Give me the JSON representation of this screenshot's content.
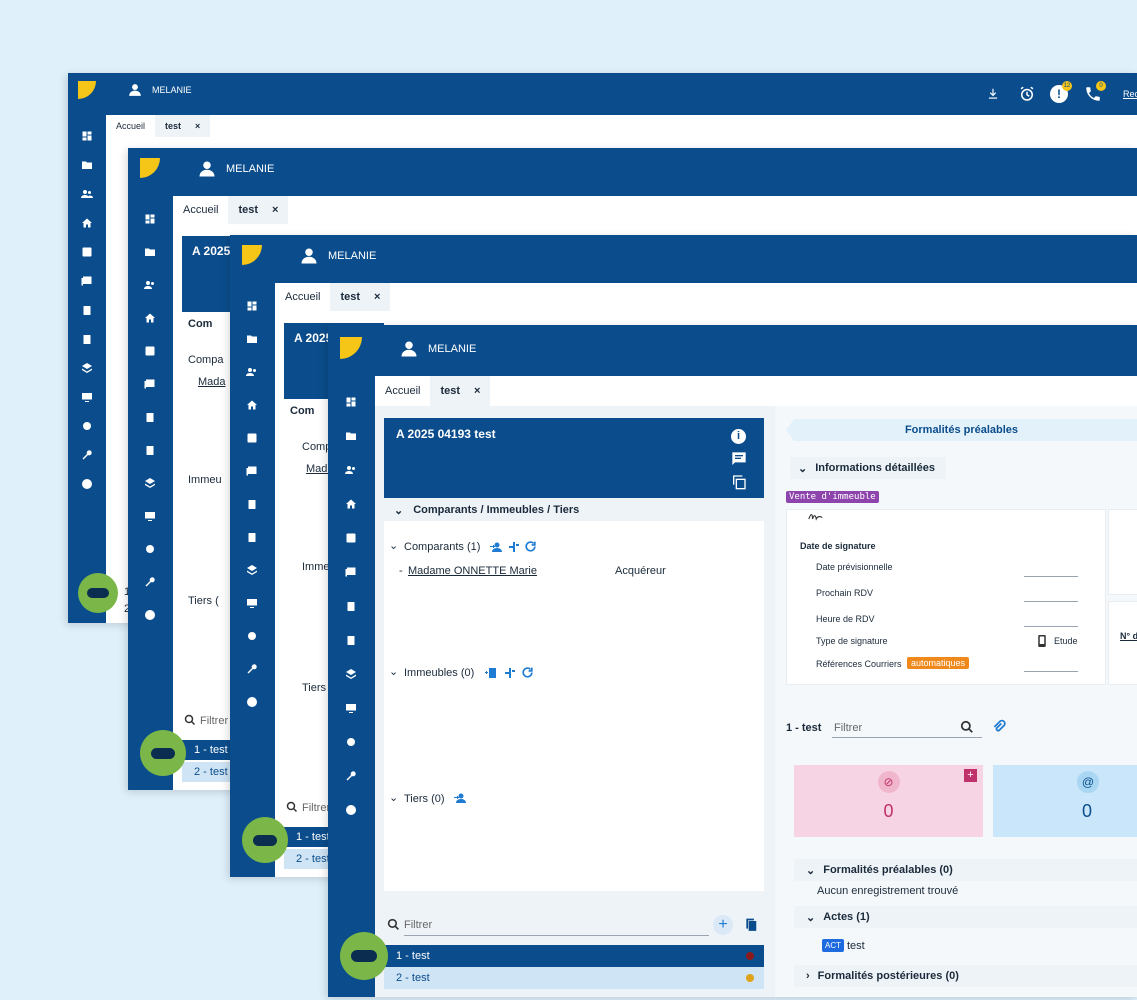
{
  "app": {
    "user_name": "MELANIE",
    "tab_home": "Accueil",
    "tab_active": "test",
    "tab_close": "×",
    "search_cut": "Rec",
    "alert_count": "12",
    "call_count": "0"
  },
  "dossier": {
    "title": "A 2025 04193 test",
    "title_cut1": "A 2025",
    "title_cut2": "A 2025",
    "section_label": "Comparants / Immeubles / Tiers",
    "section_cut": "Com",
    "comparants_label": "Comparants (1)",
    "comparants_cut": "Compa",
    "comparants_cut2": "Comp",
    "comparant_name": "Madame ONNETTE Marie",
    "comparant_name_cut": "Mada",
    "comparant_name_cut2": "Madi",
    "comparant_role": "Acquéreur",
    "immeubles_label": "Immeubles (0)",
    "immeubles_cut": "Immeu",
    "immeubles_cut2": "Imme",
    "tiers_label": "Tiers (0)",
    "tiers_cut": "Tiers (",
    "tiers_cut2": "Tiers"
  },
  "list": {
    "filter_placeholder": "Filtrer",
    "row1": "1 - test",
    "row2": "2 - test",
    "row1_cut": "1 - test",
    "row2_cut": "2 - test",
    "row1_cut_back": "1",
    "row2_cut_back": "2"
  },
  "right": {
    "banner": "Formalités préalables",
    "info_title": "Informations détaillées",
    "type_badge": "Vente d'immeuble",
    "date_signature": "Date de signature",
    "date_prev": "Date prévisionnelle",
    "prochain_rdv": "Prochain RDV",
    "heure_rdv": "Heure de RDV",
    "type_signature": "Type de signature",
    "type_signature_value": "Etude",
    "refs_courriers": "Références Courriers",
    "refs_badge": "automatiques",
    "side_cut": "N° d",
    "doc_label": "1 - test",
    "doc_filter": "Filtrer",
    "counter_attach": "0",
    "counter_mail": "0",
    "formalites_prealables": "Formalités préalables (0)",
    "aucun": "Aucun enregistrement trouvé",
    "actes": "Actes (1)",
    "acte_badge": "ACT",
    "acte_name": "test",
    "formalites_posterieures": "Formalités postérieures (0)"
  },
  "colors": {
    "brand_blue": "#0b4d8c",
    "accent_yellow": "#f5c518",
    "chat_green": "#7ab648",
    "pink_card": "#f7d4e3",
    "blue_card": "#c9e6fa",
    "row_dot_red": "#8b1a1a",
    "row_dot_gold": "#e0a21a"
  },
  "icons": [
    "dashboard-icon",
    "folder-icon",
    "people-icon",
    "home-icon",
    "contact-icon",
    "news-icon",
    "clipboard-icon",
    "clipboard-check-icon",
    "layers-icon",
    "monitor-icon",
    "gear-icon",
    "wrench-icon",
    "help-icon",
    "download-icon",
    "alarm-icon",
    "alert-icon",
    "phone-icon",
    "info-icon",
    "comment-icon",
    "copy-icon",
    "add-person-icon",
    "refresh-icon",
    "search-icon",
    "paperclip-icon",
    "at-icon",
    "plus-icon"
  ]
}
